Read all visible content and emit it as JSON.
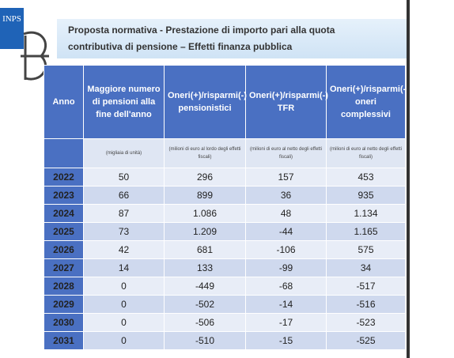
{
  "logo": "INPS",
  "header": {
    "title_lines": [
      "Proposta normativa - Prestazione di importo pari alla quota",
      "contributiva di pensione – Effetti finanza pubblica"
    ]
  },
  "table": {
    "columns": [
      "Anno",
      "Maggiore numero di pensioni alla fine dell'anno",
      "Oneri(+)/risparmi(-) pensionistici",
      "Oneri(+)/risparmi(-) TFR",
      "Oneri(+)/risparmi(-) oneri complessivi"
    ],
    "notes": [
      "(migliaia di unità)",
      "(milioni di euro al lordo degli effetti fiscali)",
      "(milioni di euro al netto degli effetti fiscali)",
      "(milioni di euro al netto degli effetti fiscali)"
    ],
    "rows": [
      [
        "2022",
        "50",
        "296",
        "157",
        "453"
      ],
      [
        "2023",
        "66",
        "899",
        "36",
        "935"
      ],
      [
        "2024",
        "87",
        "1.086",
        "48",
        "1.134"
      ],
      [
        "2025",
        "73",
        "1.209",
        "-44",
        "1.165"
      ],
      [
        "2026",
        "42",
        "681",
        "-106",
        "575"
      ],
      [
        "2027",
        "14",
        "133",
        "-99",
        "34"
      ],
      [
        "2028",
        "0",
        "-449",
        "-68",
        "-517"
      ],
      [
        "2029",
        "0",
        "-502",
        "-14",
        "-516"
      ],
      [
        "2030",
        "0",
        "-506",
        "-17",
        "-523"
      ],
      [
        "2031",
        "0",
        "-510",
        "-15",
        "-525"
      ]
    ]
  }
}
